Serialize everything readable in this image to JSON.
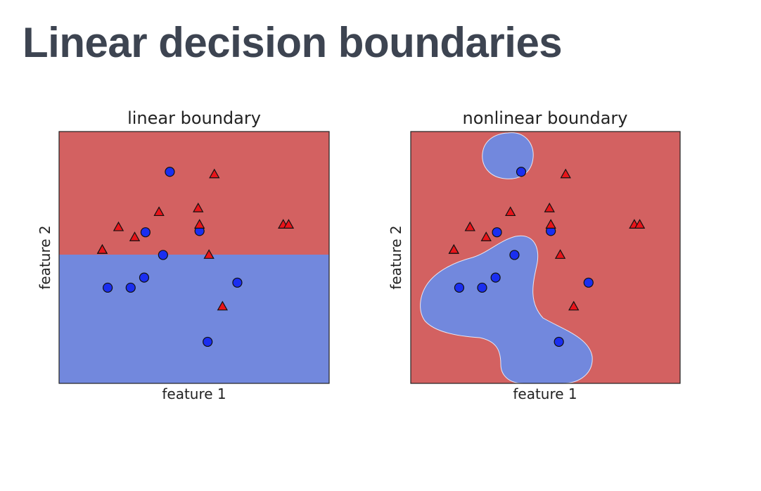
{
  "slide": {
    "title": "Linear decision boundaries"
  },
  "colors": {
    "red_region": "#d36161",
    "blue_region": "#7288dd",
    "red_marker": "#e8141a",
    "blue_marker": "#1a2ef0",
    "edge": "#111111"
  },
  "chart_data": [
    {
      "type": "scatter",
      "title": "linear boundary",
      "xlabel": "feature 1",
      "ylabel": "feature 2",
      "xlim": [
        0,
        10
      ],
      "ylim": [
        0,
        10
      ],
      "ticks": false,
      "regions": "horizontal split at y = 5.1: red above, blue below",
      "series": [
        {
          "marker": "circle",
          "color": "blue",
          "x": [
            4.1,
            3.2,
            5.2,
            3.85,
            1.8,
            2.65,
            3.15,
            6.6,
            5.5
          ],
          "y": [
            8.4,
            6.0,
            6.05,
            5.1,
            3.8,
            3.8,
            4.2,
            4.0,
            1.65
          ]
        },
        {
          "marker": "triangle",
          "color": "red",
          "x": [
            5.75,
            5.15,
            3.7,
            5.2,
            2.2,
            1.6,
            2.8,
            8.3,
            8.5,
            1.6,
            5.55,
            6.05
          ],
          "y": [
            8.3,
            6.95,
            6.8,
            6.3,
            6.2,
            5.3,
            5.8,
            6.3,
            6.3,
            5.3,
            5.1,
            3.05
          ]
        }
      ]
    },
    {
      "type": "scatter",
      "title": "nonlinear boundary",
      "xlabel": "feature 1",
      "ylabel": "feature 2",
      "xlim": [
        0,
        10
      ],
      "ylim": [
        0,
        10
      ],
      "ticks": false,
      "regions": "red background with two blue islands (top blob and lower-left bilobed region)",
      "series": [
        {
          "marker": "circle",
          "color": "blue",
          "x": [
            4.1,
            3.2,
            5.2,
            3.85,
            1.8,
            2.65,
            3.15,
            6.6,
            5.5
          ],
          "y": [
            8.4,
            6.0,
            6.05,
            5.1,
            3.8,
            3.8,
            4.2,
            4.0,
            1.65
          ]
        },
        {
          "marker": "triangle",
          "color": "red",
          "x": [
            5.75,
            5.15,
            3.7,
            5.2,
            2.2,
            1.6,
            2.8,
            8.3,
            8.5,
            1.6,
            5.55,
            6.05
          ],
          "y": [
            8.3,
            6.95,
            6.8,
            6.3,
            6.2,
            5.3,
            5.8,
            6.3,
            6.3,
            5.3,
            5.1,
            3.05
          ]
        }
      ]
    }
  ]
}
